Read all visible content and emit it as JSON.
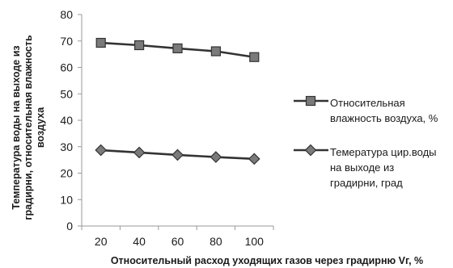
{
  "chart_data": {
    "type": "line",
    "xlabel": "Относительный расход уходящих газов через градирню Vг, %",
    "ylabel": [
      "Температура воды на выходе из",
      "градирни, относительная влажность",
      "воздуха"
    ],
    "x": [
      20,
      40,
      60,
      80,
      100
    ],
    "ylim": [
      0,
      80
    ],
    "yticks": [
      0,
      10,
      20,
      30,
      40,
      50,
      60,
      70,
      80
    ],
    "grid": false,
    "legend_position": "right",
    "series": [
      {
        "name": [
          "Относительная",
          "влажность воздуха, %"
        ],
        "marker": "square",
        "color": "#333333",
        "values": [
          69.3,
          68.4,
          67.2,
          66.1,
          63.9
        ]
      },
      {
        "name": [
          "Темература цир.воды",
          "на выходе из",
          "градирни, град"
        ],
        "marker": "diamond",
        "color": "#333333",
        "values": [
          28.7,
          27.8,
          26.9,
          26.1,
          25.4
        ]
      }
    ]
  }
}
